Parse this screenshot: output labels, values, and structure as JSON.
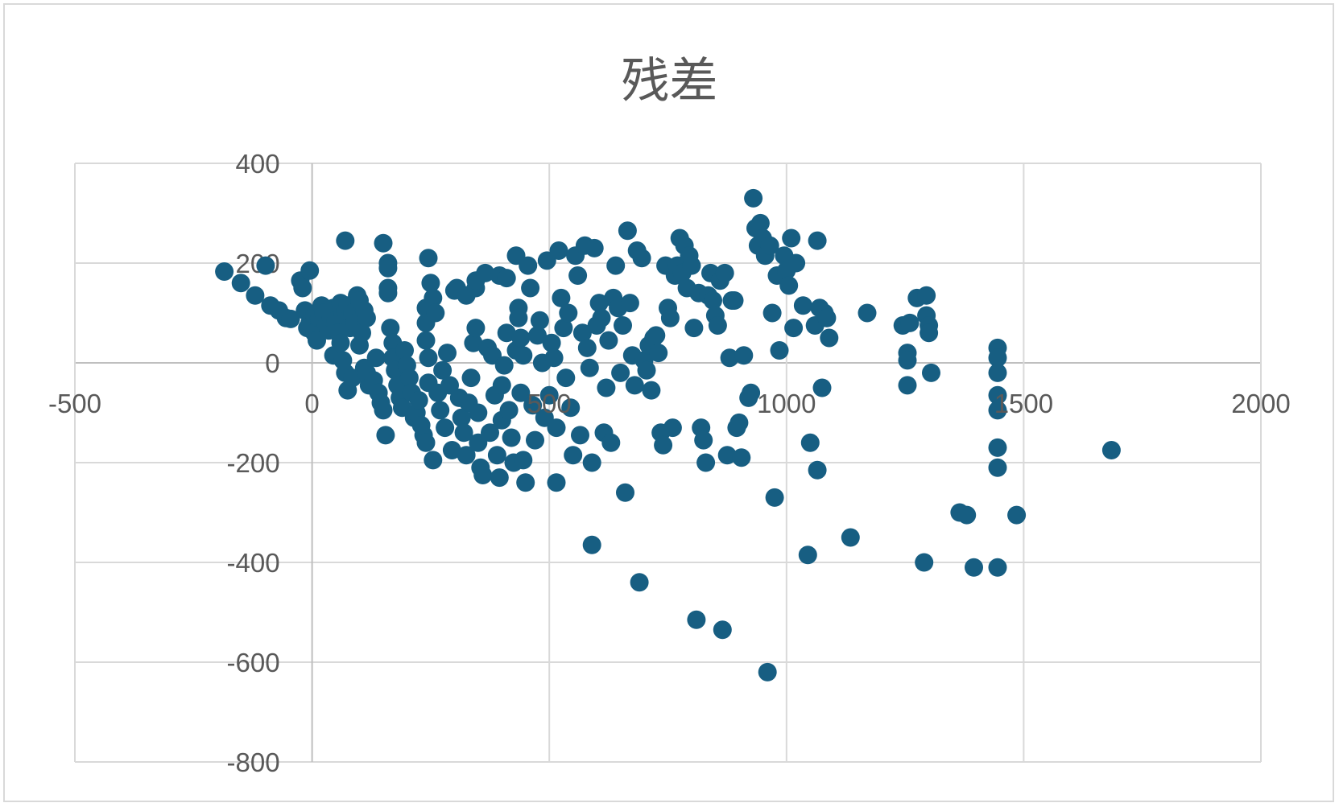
{
  "chart_data": {
    "type": "scatter",
    "title": "残差",
    "xlabel": "",
    "ylabel": "",
    "xlim": [
      -500,
      2000
    ],
    "ylim": [
      -800,
      400
    ],
    "x_ticks": [
      "-500",
      "0",
      "500",
      "1000",
      "1500",
      "2000"
    ],
    "y_ticks": [
      "400",
      "200",
      "0",
      "-200",
      "-400",
      "-600",
      "-800"
    ],
    "grid": true,
    "legend": "none",
    "marker_color": "#175e82",
    "points": [
      [
        -185,
        183
      ],
      [
        -150,
        160
      ],
      [
        -120,
        135
      ],
      [
        -98,
        195
      ],
      [
        -88,
        115
      ],
      [
        -70,
        105
      ],
      [
        -55,
        90
      ],
      [
        -45,
        88
      ],
      [
        -25,
        165
      ],
      [
        -20,
        150
      ],
      [
        -15,
        105
      ],
      [
        -5,
        185
      ],
      [
        -10,
        70
      ],
      [
        -5,
        80
      ],
      [
        5,
        60
      ],
      [
        10,
        45
      ],
      [
        5,
        95
      ],
      [
        15,
        90
      ],
      [
        20,
        115
      ],
      [
        25,
        100
      ],
      [
        30,
        75
      ],
      [
        35,
        65
      ],
      [
        40,
        90
      ],
      [
        45,
        110
      ],
      [
        50,
        85
      ],
      [
        55,
        60
      ],
      [
        60,
        120
      ],
      [
        65,
        95
      ],
      [
        70,
        105
      ],
      [
        70,
        245
      ],
      [
        75,
        115
      ],
      [
        80,
        70
      ],
      [
        85,
        100
      ],
      [
        90,
        80
      ],
      [
        95,
        135
      ],
      [
        100,
        125
      ],
      [
        105,
        60
      ],
      [
        110,
        105
      ],
      [
        115,
        90
      ],
      [
        45,
        15
      ],
      [
        60,
        40
      ],
      [
        65,
        5
      ],
      [
        70,
        -20
      ],
      [
        75,
        -55
      ],
      [
        85,
        -30
      ],
      [
        100,
        35
      ],
      [
        110,
        -10
      ],
      [
        115,
        -20
      ],
      [
        120,
        -45
      ],
      [
        130,
        -35
      ],
      [
        135,
        10
      ],
      [
        140,
        -60
      ],
      [
        145,
        -80
      ],
      [
        150,
        -95
      ],
      [
        155,
        -145
      ],
      [
        150,
        240
      ],
      [
        160,
        200
      ],
      [
        160,
        190
      ],
      [
        160,
        140
      ],
      [
        160,
        150
      ],
      [
        165,
        70
      ],
      [
        170,
        40
      ],
      [
        170,
        10
      ],
      [
        175,
        -15
      ],
      [
        180,
        -45
      ],
      [
        185,
        -70
      ],
      [
        190,
        -90
      ],
      [
        195,
        25
      ],
      [
        200,
        -5
      ],
      [
        205,
        -30
      ],
      [
        210,
        -60
      ],
      [
        215,
        -110
      ],
      [
        220,
        -100
      ],
      [
        225,
        -75
      ],
      [
        230,
        -125
      ],
      [
        235,
        -145
      ],
      [
        240,
        -160
      ],
      [
        240,
        110
      ],
      [
        240,
        80
      ],
      [
        240,
        45
      ],
      [
        245,
        10
      ],
      [
        245,
        -40
      ],
      [
        245,
        210
      ],
      [
        250,
        160
      ],
      [
        255,
        130
      ],
      [
        255,
        -195
      ],
      [
        260,
        100
      ],
      [
        265,
        -60
      ],
      [
        270,
        -95
      ],
      [
        275,
        -15
      ],
      [
        280,
        -130
      ],
      [
        285,
        20
      ],
      [
        290,
        -45
      ],
      [
        295,
        -175
      ],
      [
        300,
        145
      ],
      [
        305,
        150
      ],
      [
        310,
        -70
      ],
      [
        315,
        -110
      ],
      [
        320,
        -140
      ],
      [
        325,
        135
      ],
      [
        325,
        -185
      ],
      [
        330,
        -80
      ],
      [
        335,
        -30
      ],
      [
        340,
        40
      ],
      [
        345,
        150
      ],
      [
        345,
        165
      ],
      [
        345,
        70
      ],
      [
        350,
        -100
      ],
      [
        350,
        -160
      ],
      [
        355,
        -210
      ],
      [
        360,
        -225
      ],
      [
        365,
        180
      ],
      [
        370,
        30
      ],
      [
        375,
        -140
      ],
      [
        380,
        15
      ],
      [
        385,
        -65
      ],
      [
        390,
        -185
      ],
      [
        395,
        -230
      ],
      [
        395,
        175
      ],
      [
        400,
        -45
      ],
      [
        400,
        -115
      ],
      [
        405,
        -5
      ],
      [
        410,
        170
      ],
      [
        410,
        60
      ],
      [
        415,
        -95
      ],
      [
        420,
        -150
      ],
      [
        425,
        -200
      ],
      [
        430,
        25
      ],
      [
        430,
        215
      ],
      [
        435,
        110
      ],
      [
        435,
        90
      ],
      [
        440,
        -60
      ],
      [
        440,
        50
      ],
      [
        445,
        15
      ],
      [
        445,
        -195
      ],
      [
        450,
        -240
      ],
      [
        455,
        195
      ],
      [
        460,
        150
      ],
      [
        465,
        -85
      ],
      [
        470,
        -155
      ],
      [
        475,
        55
      ],
      [
        480,
        85
      ],
      [
        485,
        0
      ],
      [
        490,
        -110
      ],
      [
        495,
        205
      ],
      [
        500,
        -65
      ],
      [
        505,
        40
      ],
      [
        510,
        10
      ],
      [
        515,
        -130
      ],
      [
        515,
        -240
      ],
      [
        520,
        225
      ],
      [
        525,
        130
      ],
      [
        530,
        70
      ],
      [
        535,
        -30
      ],
      [
        540,
        100
      ],
      [
        545,
        -90
      ],
      [
        550,
        -185
      ],
      [
        555,
        215
      ],
      [
        560,
        175
      ],
      [
        565,
        -145
      ],
      [
        570,
        60
      ],
      [
        575,
        235
      ],
      [
        580,
        30
      ],
      [
        585,
        -10
      ],
      [
        590,
        -200
      ],
      [
        590,
        -365
      ],
      [
        595,
        230
      ],
      [
        600,
        75
      ],
      [
        605,
        120
      ],
      [
        610,
        90
      ],
      [
        615,
        -140
      ],
      [
        620,
        -50
      ],
      [
        625,
        45
      ],
      [
        630,
        -160
      ],
      [
        635,
        130
      ],
      [
        640,
        195
      ],
      [
        645,
        110
      ],
      [
        650,
        -20
      ],
      [
        655,
        75
      ],
      [
        660,
        -260
      ],
      [
        665,
        265
      ],
      [
        670,
        120
      ],
      [
        675,
        15
      ],
      [
        680,
        -45
      ],
      [
        685,
        225
      ],
      [
        690,
        -440
      ],
      [
        695,
        210
      ],
      [
        700,
        5
      ],
      [
        705,
        -15
      ],
      [
        710,
        35
      ],
      [
        715,
        -55
      ],
      [
        720,
        50
      ],
      [
        725,
        55
      ],
      [
        730,
        20
      ],
      [
        735,
        -140
      ],
      [
        740,
        -165
      ],
      [
        745,
        195
      ],
      [
        750,
        110
      ],
      [
        755,
        90
      ],
      [
        760,
        -130
      ],
      [
        765,
        175
      ],
      [
        770,
        195
      ],
      [
        775,
        250
      ],
      [
        780,
        180
      ],
      [
        785,
        235
      ],
      [
        790,
        150
      ],
      [
        795,
        215
      ],
      [
        800,
        195
      ],
      [
        805,
        70
      ],
      [
        810,
        -515
      ],
      [
        815,
        140
      ],
      [
        820,
        -130
      ],
      [
        825,
        -155
      ],
      [
        830,
        -200
      ],
      [
        835,
        135
      ],
      [
        840,
        180
      ],
      [
        845,
        125
      ],
      [
        850,
        95
      ],
      [
        855,
        75
      ],
      [
        860,
        165
      ],
      [
        865,
        -535
      ],
      [
        870,
        180
      ],
      [
        875,
        -185
      ],
      [
        880,
        10
      ],
      [
        885,
        125
      ],
      [
        890,
        125
      ],
      [
        895,
        -130
      ],
      [
        900,
        -120
      ],
      [
        905,
        -190
      ],
      [
        910,
        15
      ],
      [
        920,
        -70
      ],
      [
        925,
        -60
      ],
      [
        930,
        330
      ],
      [
        935,
        270
      ],
      [
        940,
        235
      ],
      [
        945,
        280
      ],
      [
        950,
        250
      ],
      [
        955,
        215
      ],
      [
        960,
        -620
      ],
      [
        965,
        235
      ],
      [
        970,
        100
      ],
      [
        975,
        -270
      ],
      [
        980,
        175
      ],
      [
        985,
        25
      ],
      [
        995,
        215
      ],
      [
        1000,
        185
      ],
      [
        1005,
        155
      ],
      [
        1010,
        250
      ],
      [
        1015,
        70
      ],
      [
        1020,
        200
      ],
      [
        1035,
        115
      ],
      [
        1045,
        -385
      ],
      [
        1050,
        -160
      ],
      [
        1060,
        75
      ],
      [
        1065,
        -215
      ],
      [
        1065,
        245
      ],
      [
        1070,
        110
      ],
      [
        1075,
        -50
      ],
      [
        1080,
        100
      ],
      [
        1085,
        90
      ],
      [
        1090,
        50
      ],
      [
        1135,
        -350
      ],
      [
        1170,
        100
      ],
      [
        1245,
        75
      ],
      [
        1255,
        20
      ],
      [
        1255,
        5
      ],
      [
        1255,
        -45
      ],
      [
        1260,
        80
      ],
      [
        1275,
        130
      ],
      [
        1290,
        -400
      ],
      [
        1295,
        135
      ],
      [
        1295,
        95
      ],
      [
        1300,
        75
      ],
      [
        1300,
        60
      ],
      [
        1305,
        -20
      ],
      [
        1445,
        30
      ],
      [
        1445,
        10
      ],
      [
        1445,
        -20
      ],
      [
        1445,
        -65
      ],
      [
        1445,
        -95
      ],
      [
        1445,
        -170
      ],
      [
        1445,
        -210
      ],
      [
        1445,
        -410
      ],
      [
        1485,
        -305
      ],
      [
        1685,
        -175
      ],
      [
        1365,
        -300
      ],
      [
        1380,
        -305
      ],
      [
        1395,
        -410
      ]
    ]
  }
}
